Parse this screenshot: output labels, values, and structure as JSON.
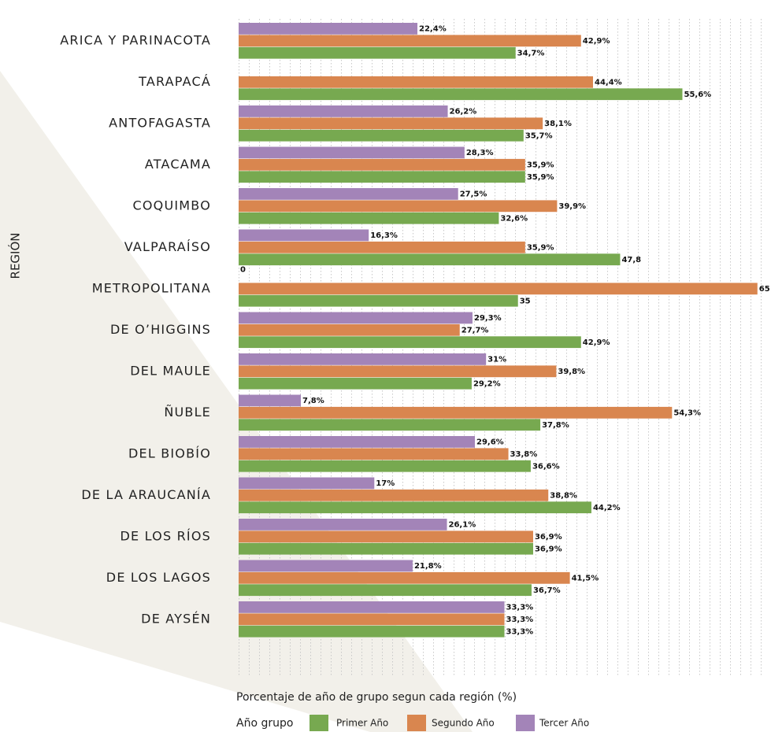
{
  "chart_data": {
    "type": "bar",
    "orientation": "horizontal",
    "ylabel": "REGIÓN",
    "xlabel": "Porcentaje de año de grupo segun cada región (%)",
    "legend_title": "Año grupo",
    "categories": [
      "ARICA Y PARINACOTA",
      "TARAPACÁ",
      "ANTOFAGASTA",
      "ATACAMA",
      "COQUIMBO",
      "VALPARAÍSO",
      "METROPOLITANA",
      "DE O’HIGGINS",
      "DEL MAULE",
      "ÑUBLE",
      "DEL BIOBÍO",
      "DE LA ARAUCANÍA",
      "DE LOS RÍOS",
      "DE LOS LAGOS",
      "DE AYSÉN"
    ],
    "xlim": [
      0,
      66.7
    ],
    "series": [
      {
        "name": "Primer Año",
        "color": "#77a950",
        "values": [
          34.7,
          55.6,
          35.7,
          35.9,
          32.6,
          47.8,
          35,
          42.9,
          29.2,
          37.8,
          36.6,
          44.2,
          36.9,
          36.7,
          33.3
        ],
        "value_labels": [
          "34,7%",
          "55,6%",
          "35,7%",
          "35,9%",
          "32,6%",
          "47,8",
          "35",
          "42,9%",
          "29,2%",
          "37,8%",
          "36,6%",
          "44,2%",
          "36,9%",
          "36,7%",
          "33,3%"
        ]
      },
      {
        "name": "Segundo Año",
        "color": "#d9864f",
        "values": [
          42.9,
          44.4,
          38.1,
          35.9,
          39.9,
          35.9,
          65,
          27.7,
          39.8,
          54.3,
          33.8,
          38.8,
          36.9,
          41.5,
          33.3
        ],
        "value_labels": [
          "42,9%",
          "44,4%",
          "38,1%",
          "35,9%",
          "39,9%",
          "35,9%",
          "65",
          "27,7%",
          "39,8%",
          "54,3%",
          "33,8%",
          "38,8%",
          "36,9%",
          "41,5%",
          "33,3%"
        ]
      },
      {
        "name": "Tercer Año",
        "color": "#a384b8",
        "values": [
          22.4,
          null,
          26.2,
          28.3,
          27.5,
          16.3,
          0,
          29.3,
          31,
          7.8,
          29.6,
          17,
          26.1,
          21.8,
          33.3
        ],
        "value_labels": [
          "22,4%",
          null,
          "26,2%",
          "28,3%",
          "27,5%",
          "16,3%",
          "0",
          "29,3%",
          "31%",
          "7,8%",
          "29,6%",
          "17%",
          "26,1%",
          "21,8%",
          "33,3%"
        ]
      }
    ]
  }
}
